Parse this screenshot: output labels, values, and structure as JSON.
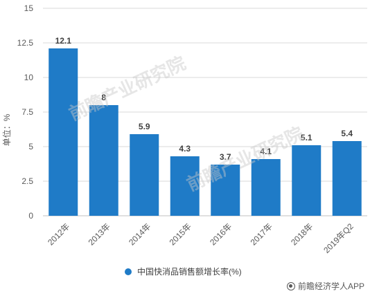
{
  "chart_data": {
    "type": "bar",
    "categories": [
      "2012年",
      "2013年",
      "2014年",
      "2015年",
      "2016年",
      "2017年",
      "2018年",
      "2019年Q2"
    ],
    "series": [
      {
        "name": "中国快消品销售额增长率(%)",
        "values": [
          12.1,
          8,
          5.9,
          4.3,
          3.7,
          4.1,
          5.1,
          5.4
        ]
      }
    ],
    "data_labels": [
      "12.1",
      "8",
      "5.9",
      "4.3",
      "3.7",
      "4.1",
      "5.1",
      "5.4"
    ],
    "ylabel": "单位：%",
    "ylim": [
      0,
      15
    ],
    "yticks": [
      0,
      2.5,
      5,
      7.5,
      10,
      12.5,
      15
    ],
    "ytick_labels": [
      "0",
      "2.5",
      "5",
      "7.5",
      "10",
      "12.5",
      "15"
    ],
    "grid": true,
    "legend_position": "bottom",
    "bar_color": "#1F7BC7"
  },
  "legend": {
    "label": "中国快消品销售额增长率(%)"
  },
  "watermark": {
    "text": "前瞻经济学人APP",
    "logo_text": "前瞻产业研究院"
  }
}
